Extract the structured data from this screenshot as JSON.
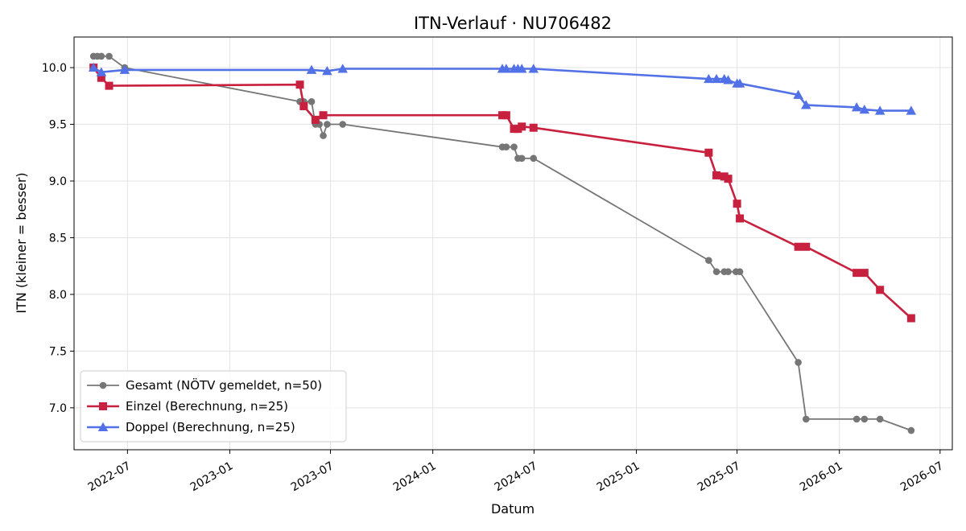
{
  "chart_data": {
    "type": "line",
    "title": "ITN-Verlauf · NU706482",
    "xlabel": "Datum",
    "ylabel": "ITN  (kleiner = besser)",
    "x_ticks": [
      "2022-07",
      "2023-01",
      "2023-07",
      "2024-01",
      "2024-07",
      "2025-01",
      "2025-07",
      "2026-01",
      "2026-07"
    ],
    "y_ticks": [
      "7.0",
      "7.5",
      "8.0",
      "8.5",
      "9.0",
      "9.5",
      "10.0"
    ],
    "xlim": [
      "2022-03-27",
      "2026-07-23"
    ],
    "ylim": [
      6.63,
      10.27
    ],
    "grid": true,
    "legend_position": "lower-left",
    "series": [
      {
        "name": "Gesamt (NÖTV gemeldet, n=50)",
        "color": "#555555",
        "marker": "circle",
        "points": [
          [
            "2022-05-01",
            10.1
          ],
          [
            "2022-05-08",
            10.1
          ],
          [
            "2022-05-15",
            10.1
          ],
          [
            "2022-05-29",
            10.1
          ],
          [
            "2022-06-26",
            10.0
          ],
          [
            "2023-05-07",
            9.7
          ],
          [
            "2023-05-14",
            9.7
          ],
          [
            "2023-05-28",
            9.7
          ],
          [
            "2023-06-04",
            9.5
          ],
          [
            "2023-06-11",
            9.5
          ],
          [
            "2023-06-18",
            9.4
          ],
          [
            "2023-06-25",
            9.5
          ],
          [
            "2023-07-23",
            9.5
          ],
          [
            "2024-05-05",
            9.3
          ],
          [
            "2024-05-12",
            9.3
          ],
          [
            "2024-05-26",
            9.3
          ],
          [
            "2024-06-02",
            9.2
          ],
          [
            "2024-06-09",
            9.2
          ],
          [
            "2024-06-30",
            9.2
          ],
          [
            "2025-05-11",
            8.3
          ],
          [
            "2025-05-25",
            8.2
          ],
          [
            "2025-06-08",
            8.2
          ],
          [
            "2025-06-15",
            8.2
          ],
          [
            "2025-06-29",
            8.2
          ],
          [
            "2025-07-06",
            8.2
          ],
          [
            "2025-10-19",
            7.4
          ],
          [
            "2025-11-02",
            6.9
          ],
          [
            "2026-02-01",
            6.9
          ],
          [
            "2026-02-15",
            6.9
          ],
          [
            "2026-03-15",
            6.9
          ],
          [
            "2026-05-10",
            6.8
          ]
        ]
      },
      {
        "name": "Einzel (Berechnung, n=25)",
        "color": "#c8203f",
        "marker": "square",
        "points": [
          [
            "2022-05-01",
            10.0
          ],
          [
            "2022-05-15",
            9.91
          ],
          [
            "2022-05-29",
            9.84
          ],
          [
            "2023-05-07",
            9.85
          ],
          [
            "2023-05-14",
            9.66
          ],
          [
            "2023-06-04",
            9.54
          ],
          [
            "2023-06-18",
            9.58
          ],
          [
            "2024-05-05",
            9.58
          ],
          [
            "2024-05-12",
            9.58
          ],
          [
            "2024-05-26",
            9.46
          ],
          [
            "2024-06-02",
            9.46
          ],
          [
            "2024-06-09",
            9.48
          ],
          [
            "2024-06-30",
            9.47
          ],
          [
            "2025-05-11",
            9.25
          ],
          [
            "2025-05-25",
            9.05
          ],
          [
            "2025-06-08",
            9.04
          ],
          [
            "2025-06-15",
            9.02
          ],
          [
            "2025-07-01",
            8.8
          ],
          [
            "2025-07-06",
            8.67
          ],
          [
            "2025-10-19",
            8.42
          ],
          [
            "2025-11-02",
            8.42
          ],
          [
            "2026-02-01",
            8.19
          ],
          [
            "2026-02-15",
            8.19
          ],
          [
            "2026-03-15",
            8.04
          ],
          [
            "2026-05-10",
            7.79
          ]
        ]
      },
      {
        "name": "Doppel (Berechnung, n=25)",
        "color": "#5271e6",
        "marker": "triangle",
        "points": [
          [
            "2022-05-01",
            10.0
          ],
          [
            "2022-05-15",
            9.96
          ],
          [
            "2022-06-26",
            9.98
          ],
          [
            "2023-05-28",
            9.98
          ],
          [
            "2023-06-25",
            9.97
          ],
          [
            "2023-07-23",
            9.99
          ],
          [
            "2024-05-05",
            9.99
          ],
          [
            "2024-05-12",
            9.99
          ],
          [
            "2024-05-26",
            9.99
          ],
          [
            "2024-06-02",
            9.99
          ],
          [
            "2024-06-09",
            9.99
          ],
          [
            "2024-06-30",
            9.99
          ],
          [
            "2025-05-11",
            9.9
          ],
          [
            "2025-05-25",
            9.9
          ],
          [
            "2025-06-08",
            9.9
          ],
          [
            "2025-06-15",
            9.89
          ],
          [
            "2025-07-01",
            9.86
          ],
          [
            "2025-07-06",
            9.86
          ],
          [
            "2025-10-19",
            9.76
          ],
          [
            "2025-11-02",
            9.67
          ],
          [
            "2026-02-01",
            9.65
          ],
          [
            "2026-02-15",
            9.63
          ],
          [
            "2026-03-15",
            9.62
          ],
          [
            "2026-05-10",
            9.62
          ]
        ]
      }
    ]
  }
}
